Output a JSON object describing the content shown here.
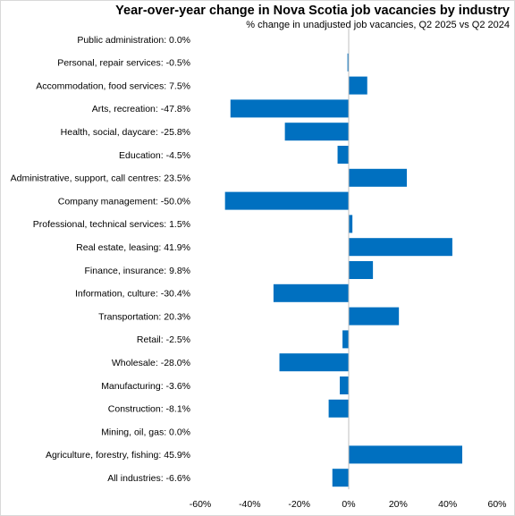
{
  "chart_data": {
    "type": "bar",
    "orientation": "horizontal",
    "title": "Year-over-year change in Nova Scotia job vacancies by industry",
    "subtitle": "% change in unadjusted job vacancies,  Q2 2025 vs Q2 2024",
    "categories": [
      "Public administration:",
      "Personal, repair services:",
      "Accommodation, food services:",
      "Arts, recreation:",
      "Health, social, daycare:",
      "Education:",
      "Administrative, support, call centres:",
      "Company management:",
      "Professional, technical services:",
      "Real estate, leasing:",
      "Finance, insurance:",
      "Information, culture:",
      "Transportation:",
      "Retail:",
      "Wholesale:",
      "Manufacturing:",
      "Construction:",
      "Mining, oil, gas:",
      "Agriculture, forestry, fishing:",
      "All industries:"
    ],
    "values": [
      0.0,
      -0.5,
      7.5,
      -47.8,
      -25.8,
      -4.5,
      23.5,
      -50.0,
      1.5,
      41.9,
      9.8,
      -30.4,
      20.3,
      -2.5,
      -28.0,
      -3.6,
      -8.1,
      0.0,
      45.9,
      -6.6
    ],
    "value_labels": [
      "0.0%",
      "-0.5%",
      "7.5%",
      "-47.8%",
      "-25.8%",
      "-4.5%",
      "23.5%",
      "-50.0%",
      "1.5%",
      "41.9%",
      "9.8%",
      "-30.4%",
      "20.3%",
      "-2.5%",
      "-28.0%",
      "-3.6%",
      "-8.1%",
      "0.0%",
      "45.9%",
      "-6.6%"
    ],
    "xlim": [
      -60,
      60
    ],
    "x_ticks": [
      -60,
      -40,
      -20,
      0,
      20,
      40,
      60
    ],
    "x_tick_labels": [
      "-60%",
      "-40%",
      "-20%",
      "0%",
      "20%",
      "40%",
      "60%"
    ],
    "grid": false,
    "bar_color": "#0070c0"
  }
}
